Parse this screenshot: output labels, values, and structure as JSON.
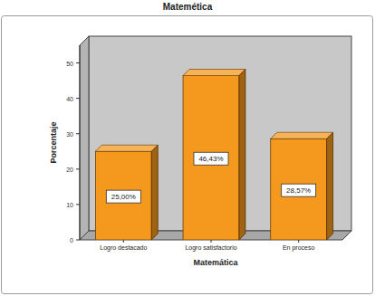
{
  "chart_data": {
    "type": "bar",
    "title": "Matemética",
    "x_label": "Matemática",
    "y_label": "Porcentaje",
    "categories": [
      "Logro destacado",
      "Logro satisfactorio",
      "En proceso"
    ],
    "values": [
      25.0,
      46.43,
      28.57
    ],
    "value_labels": [
      "25,00%",
      "46,43%",
      "28,57%"
    ],
    "color": "#f5991e",
    "ylim": [
      0,
      55
    ],
    "yticks": [
      0,
      10,
      20,
      30,
      40,
      50
    ],
    "grid": false,
    "data_labels": true
  }
}
